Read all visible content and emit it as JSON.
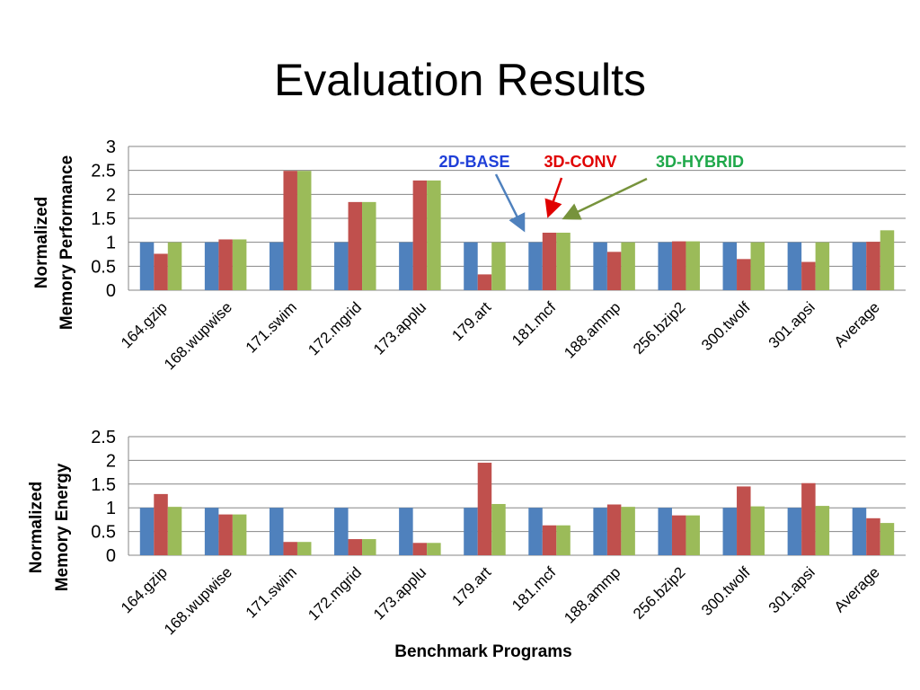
{
  "slide": {
    "title": "Evaluation Results"
  },
  "colors": {
    "2D-BASE": "#4F81BD",
    "3D-CONV": "#C0504D",
    "3D-HYBRID": "#9BBB59",
    "legend_2D-BASE": "#1F3FD8",
    "legend_3D-CONV": "#E00000",
    "legend_3D-HYBRID": "#1FA84A",
    "arrow_2D-BASE": "#4F81BD",
    "arrow_3D-CONV": "#E00000",
    "arrow_3D-HYBRID": "#77933C",
    "gridline": "#868686"
  },
  "chart_data": [
    {
      "type": "bar",
      "categories": [
        "164.gzip",
        "168.wupwise",
        "171.swim",
        "172.mgrid",
        "173.applu",
        "179.art",
        "181.mcf",
        "188.ammp",
        "256.bzip2",
        "300.twolf",
        "301.apsi",
        "Average"
      ],
      "series": [
        {
          "name": "2D-BASE",
          "values": [
            1,
            1,
            1,
            1,
            1,
            1,
            1,
            1,
            1,
            1,
            1,
            1
          ]
        },
        {
          "name": "3D-CONV",
          "values": [
            0.76,
            1.06,
            2.49,
            1.84,
            2.29,
            0.33,
            1.2,
            0.8,
            1.02,
            0.65,
            0.59,
            1.01
          ]
        },
        {
          "name": "3D-HYBRID",
          "values": [
            1.0,
            1.06,
            2.49,
            1.84,
            2.29,
            1.0,
            1.2,
            1.0,
            1.02,
            1.0,
            1.0,
            1.25
          ]
        }
      ],
      "ylabel_lines": [
        "Normalized",
        "Memory Performance"
      ],
      "xlabel": "",
      "ylim": [
        0,
        3
      ],
      "yticks": [
        "0",
        "0.5",
        "1",
        "1.5",
        "2",
        "2.5",
        "3"
      ],
      "grid": true,
      "legend": "top-center, with arrows pointing to 181.mcf bars"
    },
    {
      "type": "bar",
      "categories": [
        "164.gzip",
        "168.wupwise",
        "171.swim",
        "172.mgrid",
        "173.applu",
        "179.art",
        "181.mcf",
        "188.ammp",
        "256.bzip2",
        "300.twolf",
        "301.apsi",
        "Average"
      ],
      "series": [
        {
          "name": "2D-BASE",
          "values": [
            1,
            1,
            1,
            1,
            1,
            1,
            1,
            1,
            1,
            1,
            1,
            1
          ]
        },
        {
          "name": "3D-CONV",
          "values": [
            1.29,
            0.86,
            0.28,
            0.34,
            0.26,
            1.95,
            0.63,
            1.07,
            0.84,
            1.45,
            1.52,
            0.78
          ]
        },
        {
          "name": "3D-HYBRID",
          "values": [
            1.02,
            0.86,
            0.28,
            0.34,
            0.26,
            1.08,
            0.63,
            1.02,
            0.84,
            1.03,
            1.04,
            0.68
          ]
        }
      ],
      "ylabel_lines": [
        "Normalized",
        "Memory Energy"
      ],
      "xlabel": "Benchmark Programs",
      "ylim": [
        0,
        2.5
      ],
      "yticks": [
        "0",
        "0.5",
        "1",
        "1.5",
        "2",
        "2.5"
      ],
      "grid": true,
      "legend": "none"
    }
  ]
}
